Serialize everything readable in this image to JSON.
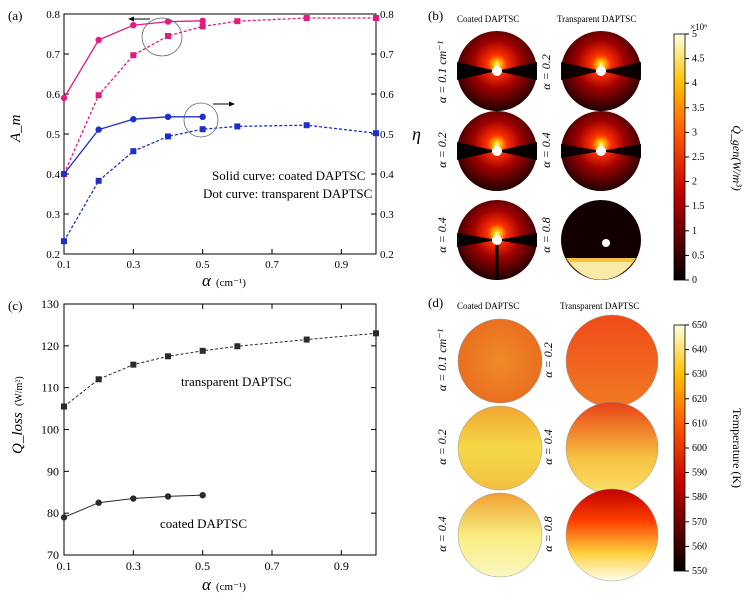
{
  "chart_data": [
    {
      "panel": "(a)",
      "type": "line",
      "xlabel": "α",
      "xlabel_unit": "(cm⁻¹)",
      "ylabel_left": "A_m",
      "ylabel_right": "η",
      "xlim": [
        0.1,
        1.0
      ],
      "ylim_left": [
        0.2,
        0.8
      ],
      "ylim_right": [
        0.2,
        0.8
      ],
      "xticks": [
        "0.1",
        "0.3",
        "0.5",
        "0.7",
        "0.9"
      ],
      "yticks_left": [
        "0.2",
        "0.3",
        "0.4",
        "0.5",
        "0.6",
        "0.7",
        "0.8"
      ],
      "yticks_right": [
        "0.2",
        "0.3",
        "0.4",
        "0.5",
        "0.6",
        "0.7",
        "0.8"
      ],
      "annotations": [
        "Solid curve: coated DAPTSC",
        "Dot curve: transparent DAPTSC"
      ],
      "series": [
        {
          "axis": "left",
          "color": "#e6197f",
          "style": "solid",
          "marker": "circle",
          "x": [
            0.1,
            0.2,
            0.3,
            0.4,
            0.5
          ],
          "y": [
            0.59,
            0.735,
            0.772,
            0.781,
            0.783
          ]
        },
        {
          "axis": "right",
          "color": "#e6197f",
          "style": "dotted",
          "marker": "square",
          "x": [
            0.1,
            0.2,
            0.3,
            0.4,
            0.5,
            0.6,
            0.8,
            1.0
          ],
          "y": [
            0.4,
            0.597,
            0.697,
            0.745,
            0.769,
            0.782,
            0.79,
            0.79
          ]
        },
        {
          "axis": "left",
          "color": "#1f2fc8",
          "style": "solid",
          "marker": "circle",
          "x": [
            0.1,
            0.2,
            0.3,
            0.4,
            0.5
          ],
          "y": [
            0.4,
            0.511,
            0.537,
            0.543,
            0.543
          ]
        },
        {
          "axis": "right",
          "color": "#1f2fc8",
          "style": "dotted",
          "marker": "square",
          "x": [
            0.1,
            0.2,
            0.3,
            0.4,
            0.5,
            0.6,
            0.8,
            1.0
          ],
          "y": [
            0.232,
            0.383,
            0.457,
            0.494,
            0.512,
            0.519,
            0.522,
            0.502
          ]
        }
      ]
    },
    {
      "panel": "(b)",
      "type": "heatmap",
      "column_titles": [
        "Coated DAPTSC",
        "Transparent DAPTSC"
      ],
      "row_labels_left": [
        "α = 0.1 cm⁻¹",
        "α = 0.2",
        "α = 0.4"
      ],
      "row_labels_right": [
        "α = 0.2",
        "α = 0.4",
        "α = 0.8"
      ],
      "colorbar_label": "Q̇_gen(W/m³)",
      "colorbar_multiplier": "×10⁶",
      "colorbar_ticks": [
        "0",
        "0.5",
        "1",
        "1.5",
        "2",
        "2.5",
        "3",
        "3.5",
        "4",
        "4.5",
        "5"
      ],
      "colorbar_range": [
        0,
        5
      ]
    },
    {
      "panel": "(c)",
      "type": "line",
      "xlabel": "α",
      "xlabel_unit": "(cm⁻¹)",
      "ylabel": "Q_loss",
      "ylabel_unit": "(W/m²)",
      "xlim": [
        0.1,
        1.0
      ],
      "ylim": [
        70,
        130
      ],
      "xticks": [
        "0.1",
        "0.3",
        "0.5",
        "0.7",
        "0.9"
      ],
      "yticks": [
        "70",
        "80",
        "90",
        "100",
        "110",
        "120",
        "130"
      ],
      "series": [
        {
          "name": "transparent DAPTSC",
          "style": "dotted",
          "marker": "square",
          "color": "#2b2b2b",
          "x": [
            0.1,
            0.2,
            0.3,
            0.4,
            0.5,
            0.6,
            0.8,
            1.0
          ],
          "y": [
            105.5,
            112.0,
            115.5,
            117.5,
            118.8,
            119.9,
            121.5,
            123.0
          ]
        },
        {
          "name": "coated DAPTSC",
          "style": "solid",
          "marker": "circle",
          "color": "#2b2b2b",
          "x": [
            0.1,
            0.2,
            0.3,
            0.4,
            0.5
          ],
          "y": [
            79.0,
            82.5,
            83.5,
            84.0,
            84.3
          ]
        }
      ]
    },
    {
      "panel": "(d)",
      "type": "heatmap",
      "column_titles": [
        "Coated DAPTSC",
        "Transparent DAPTSC"
      ],
      "row_labels_left": [
        "α = 0.1 cm⁻¹",
        "α = 0.2",
        "α = 0.4"
      ],
      "row_labels_right": [
        "α = 0.2",
        "α = 0.4",
        "α = 0.8"
      ],
      "colorbar_label": "Temperature (K)",
      "colorbar_ticks": [
        "550",
        "560",
        "570",
        "580",
        "590",
        "600",
        "610",
        "620",
        "630",
        "640",
        "650"
      ],
      "colorbar_range": [
        550,
        650
      ]
    }
  ]
}
